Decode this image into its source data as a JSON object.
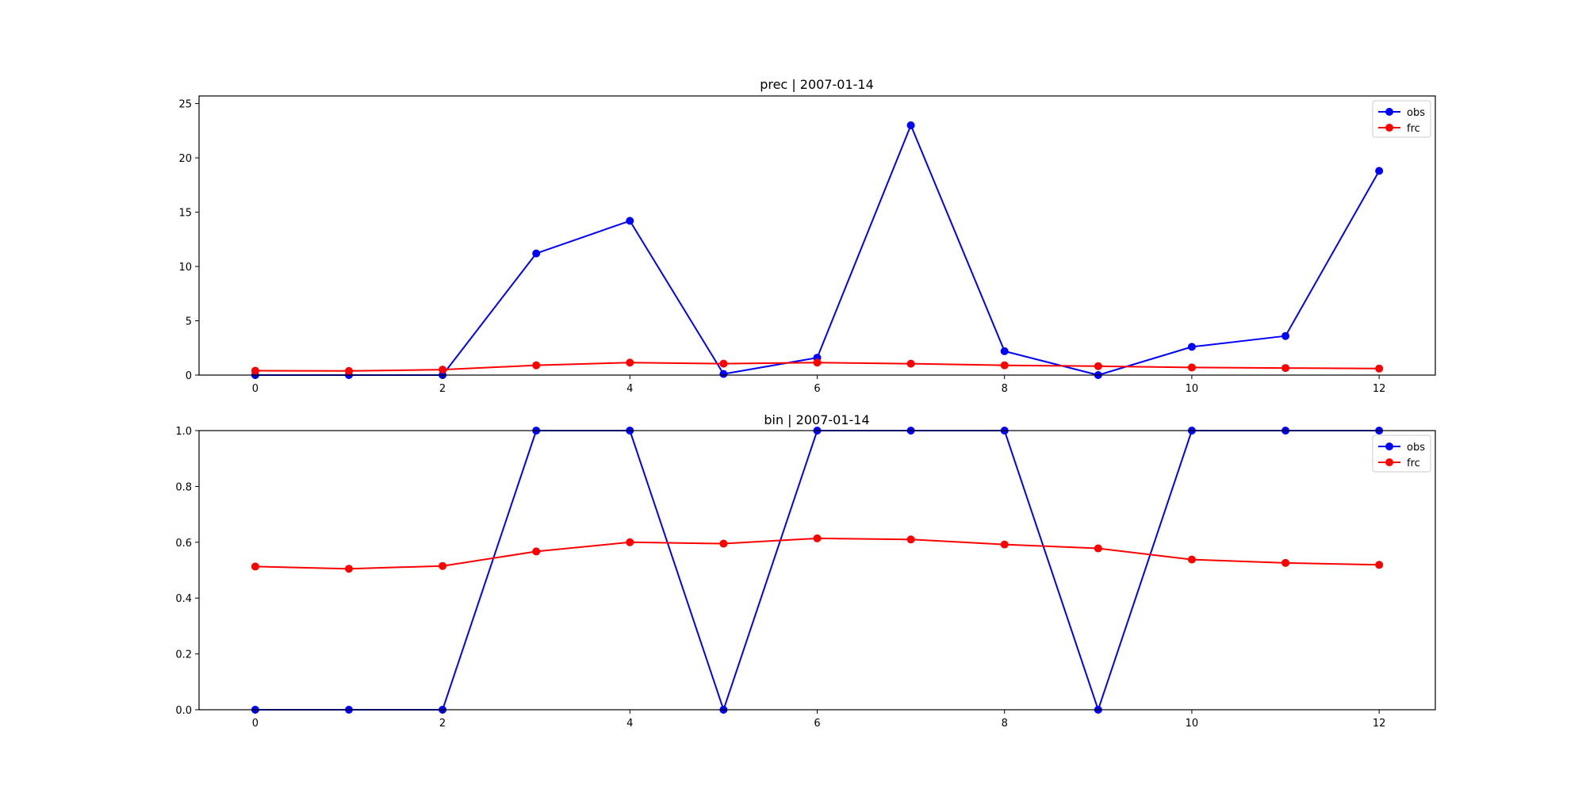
{
  "chart_data": [
    {
      "type": "line",
      "title": "prec | 2007-01-14",
      "xlabel": "",
      "ylabel": "",
      "x": [
        0,
        1,
        2,
        3,
        4,
        5,
        6,
        7,
        8,
        9,
        10,
        11,
        12
      ],
      "xlim": [
        -0.6,
        12.6
      ],
      "ylim": [
        0,
        25.7
      ],
      "xticks": [
        0,
        2,
        4,
        6,
        8,
        10,
        12
      ],
      "yticks": [
        0,
        5,
        10,
        15,
        20,
        25
      ],
      "ytick_decimals": 0,
      "grid": false,
      "legend": "top-right",
      "series": [
        {
          "name": "obs",
          "color": "#0000ff",
          "marker": "circle",
          "values": [
            0.0,
            0.0,
            0.0,
            11.2,
            14.2,
            0.1,
            1.6,
            23.0,
            2.2,
            0.0,
            2.6,
            3.6,
            18.8
          ]
        },
        {
          "name": "frc",
          "color": "#ff0000",
          "marker": "circle",
          "values": [
            0.4,
            0.38,
            0.5,
            0.9,
            1.15,
            1.05,
            1.15,
            1.05,
            0.9,
            0.82,
            0.7,
            0.65,
            0.6
          ]
        }
      ]
    },
    {
      "type": "line",
      "title": "bin | 2007-01-14",
      "xlabel": "",
      "ylabel": "",
      "x": [
        0,
        1,
        2,
        3,
        4,
        5,
        6,
        7,
        8,
        9,
        10,
        11,
        12
      ],
      "xlim": [
        -0.6,
        12.6
      ],
      "ylim": [
        0,
        1.0
      ],
      "xticks": [
        0,
        2,
        4,
        6,
        8,
        10,
        12
      ],
      "yticks": [
        0.0,
        0.2,
        0.4,
        0.6,
        0.8,
        1.0
      ],
      "ytick_decimals": 1,
      "grid": false,
      "legend": "top-right",
      "series": [
        {
          "name": "obs",
          "color": "#0000ff",
          "marker": "circle",
          "values": [
            0,
            0,
            0,
            1,
            1,
            0,
            1,
            1,
            1,
            0,
            1,
            1,
            1
          ]
        },
        {
          "name": "frc",
          "color": "#ff0000",
          "marker": "circle",
          "values": [
            0.513,
            0.505,
            0.515,
            0.567,
            0.6,
            0.595,
            0.614,
            0.61,
            0.592,
            0.578,
            0.538,
            0.526,
            0.519
          ]
        }
      ]
    }
  ]
}
